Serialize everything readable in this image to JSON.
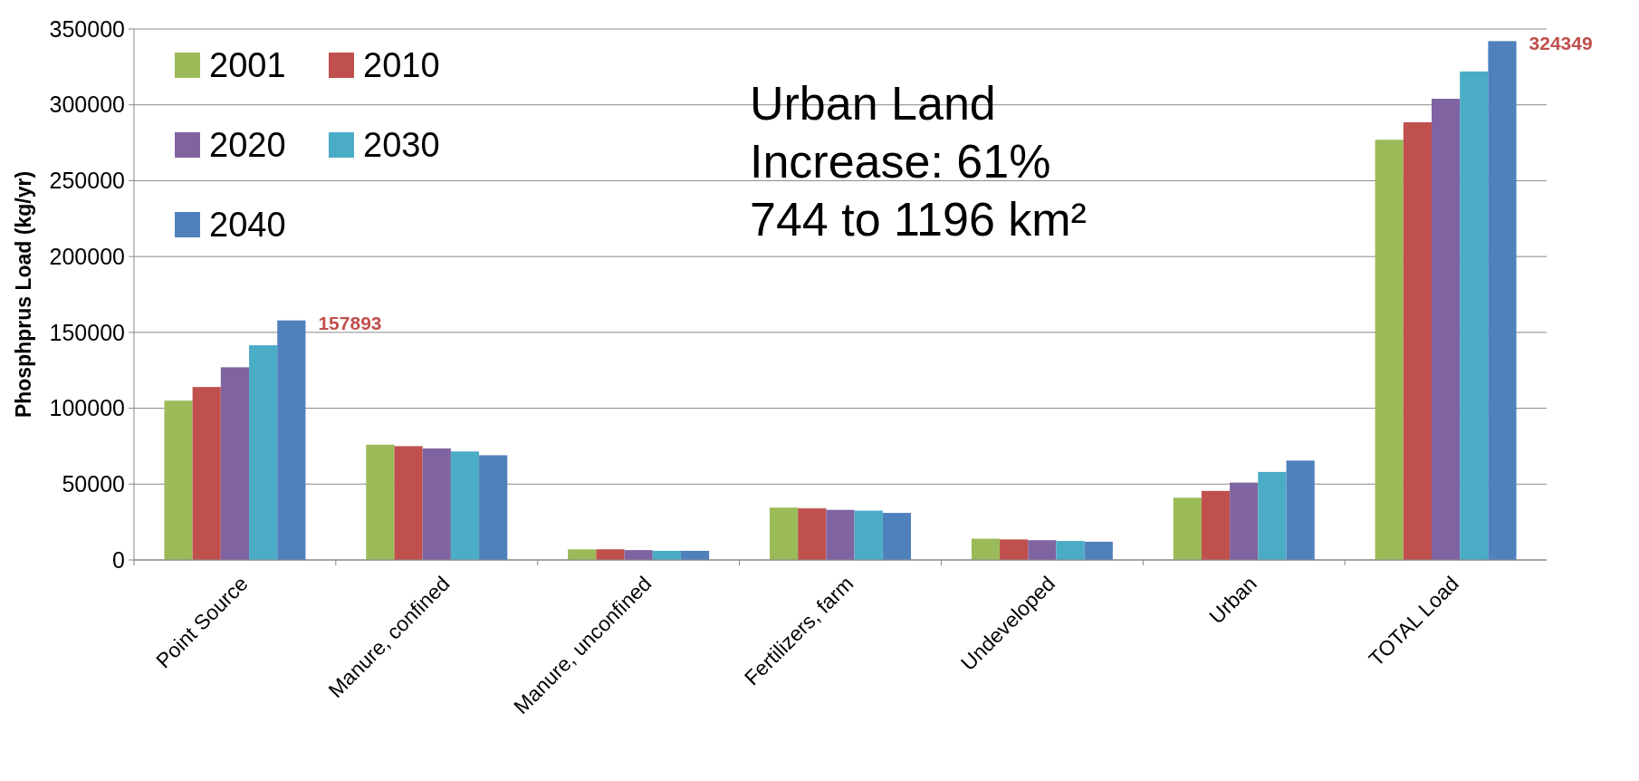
{
  "chart_data": {
    "type": "bar",
    "ylabel": "Phosphprus Load (kg/yr)",
    "categories": [
      "Point Source",
      "Manure, confined",
      "Manure, unconfined",
      "Fertilizers, farm",
      "Undeveloped",
      "Urban",
      "TOTAL Load"
    ],
    "series": [
      {
        "name": "2001",
        "color": "#9bbb59",
        "values": [
          105000,
          76000,
          7000,
          34500,
          14000,
          41000,
          277000
        ]
      },
      {
        "name": "2010",
        "color": "#c0504d",
        "values": [
          114000,
          75000,
          7000,
          34000,
          13500,
          45500,
          288500
        ]
      },
      {
        "name": "2020",
        "color": "#8064a2",
        "values": [
          127000,
          73500,
          6500,
          33000,
          13000,
          51000,
          304000
        ]
      },
      {
        "name": "2030",
        "color": "#4bacc6",
        "values": [
          141500,
          71500,
          6000,
          32500,
          12500,
          58000,
          322000
        ]
      },
      {
        "name": "2040",
        "color": "#4f81bd",
        "values": [
          157893,
          69000,
          6000,
          31000,
          12000,
          65500,
          342000
        ]
      }
    ],
    "ylim": [
      0,
      350000
    ],
    "yticks": [
      0,
      50000,
      100000,
      150000,
      200000,
      250000,
      300000,
      350000
    ],
    "grid": "y",
    "legend": "top left",
    "annotations": [
      "Urban Land",
      "Increase: 61%",
      "744 to 1196 km²",
      "157893",
      "324349"
    ]
  }
}
